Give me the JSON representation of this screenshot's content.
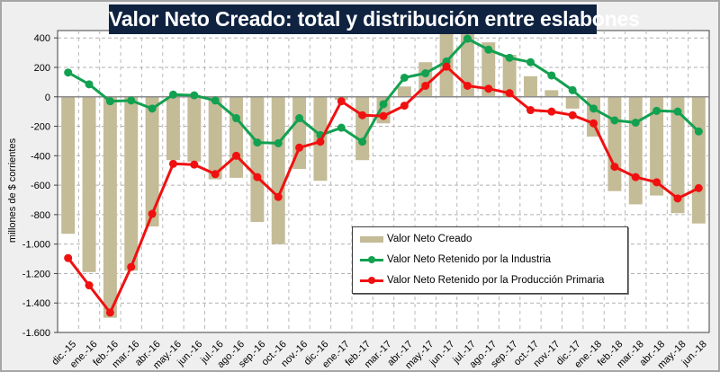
{
  "chart_data": {
    "type": "bar+line",
    "title": "Valor Neto Creado: total y distribución entre eslabones",
    "xlabel": "",
    "ylabel": "millones de $ corrientes",
    "ylim": [
      -1600,
      400
    ],
    "yticks": [
      400,
      200,
      0,
      -200,
      -400,
      -600,
      -800,
      -1000,
      -1200,
      -1400,
      -1600
    ],
    "ytick_labels": [
      "400",
      "200",
      "0",
      "-200",
      "-400",
      "-600",
      "-800",
      "-1.000",
      "-1.200",
      "-1.400",
      "-1.600"
    ],
    "grid": true,
    "legend_position": "lower-center",
    "categories": [
      "dic.-15",
      "ene.-16",
      "feb.-16",
      "mar.-16",
      "abr.-16",
      "may.-16",
      "jun.-16",
      "jul.-16",
      "ago.-16",
      "sep.-16",
      "oct.-16",
      "nov.-16",
      "dic.-16",
      "ene.-17",
      "feb.-17",
      "mar.-17",
      "abr.-17",
      "may.-17",
      "jun.-17",
      "jul.-17",
      "ago.-17",
      "sep.-17",
      "oct.-17",
      "nov.-17",
      "dic.-17",
      "ene.-18",
      "feb.-18",
      "mar.-18",
      "abr.-18",
      "may.-18",
      "jun.-18"
    ],
    "series": [
      {
        "name": "Valor Neto Creado",
        "kind": "bar",
        "color": "#c4bb97",
        "values": [
          -930,
          -1190,
          -1500,
          -1180,
          -880,
          -430,
          -440,
          -560,
          -550,
          -850,
          -1000,
          -490,
          -570,
          -20,
          -430,
          -180,
          70,
          235,
          450,
          475,
          370,
          285,
          140,
          45,
          -80,
          -270,
          -640,
          -730,
          -670,
          -790,
          -860
        ]
      },
      {
        "name": "Valor Neto Retenido por la Industria",
        "kind": "line",
        "color": "#12a150",
        "values": [
          165,
          85,
          -30,
          -25,
          -80,
          15,
          10,
          -25,
          -145,
          -310,
          -315,
          -145,
          -260,
          -210,
          -305,
          -50,
          130,
          160,
          240,
          395,
          320,
          265,
          235,
          145,
          45,
          -80,
          -160,
          -175,
          -95,
          -100,
          -235
        ]
      },
      {
        "name": "Valor Neto Retenido por la Producción Primaria",
        "kind": "line",
        "color": "#f01010",
        "values": [
          -1095,
          -1280,
          -1465,
          -1155,
          -795,
          -455,
          -460,
          -525,
          -400,
          -545,
          -680,
          -345,
          -305,
          -30,
          -125,
          -130,
          -60,
          75,
          205,
          75,
          55,
          25,
          -90,
          -100,
          -125,
          -180,
          -475,
          -545,
          -580,
          -690,
          -620
        ]
      }
    ]
  }
}
